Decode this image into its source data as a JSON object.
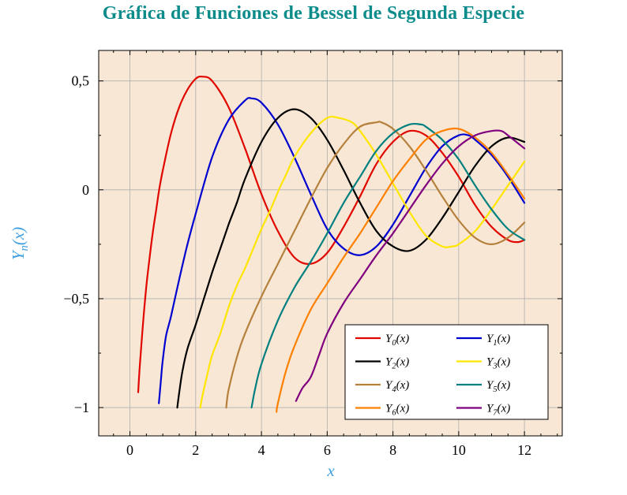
{
  "title": "Gráfica de Funciones de Bessel de Segunda Especie",
  "labels": {
    "x": "x",
    "y_base": "Y",
    "y_sub": "n",
    "y_rest": "(x)"
  },
  "colors": {
    "title": "#0c8b8b",
    "axis_label": "#3f9fdf",
    "plot_bg": "#f8e7d4",
    "grid": "#b0b0b0",
    "frame": "#000000",
    "legend_bg": "#ffffff",
    "legend_border": "#000000",
    "tick": "#000000"
  },
  "chart_data": {
    "type": "line",
    "title": "Gráfica de Funciones de Bessel de Segunda Especie",
    "xlabel": "x",
    "ylabel": "Yn(x)",
    "xlim": [
      -0.95,
      13.15
    ],
    "ylim": [
      -1.13,
      0.64
    ],
    "grid": true,
    "legend_position": "bottom-right",
    "xticks": [
      {
        "v": 0,
        "label": "0"
      },
      {
        "v": 2,
        "label": "2"
      },
      {
        "v": 4,
        "label": "4"
      },
      {
        "v": 6,
        "label": "6"
      },
      {
        "v": 8,
        "label": "8"
      },
      {
        "v": 10,
        "label": "10"
      },
      {
        "v": 12,
        "label": "12"
      }
    ],
    "yticks": [
      {
        "v": 0.5,
        "label": "0,5"
      },
      {
        "v": 0,
        "label": "0"
      },
      {
        "v": -0.5,
        "label": "−0,5"
      },
      {
        "v": -1,
        "label": "−1"
      }
    ],
    "series": [
      {
        "name": "Y0(x)",
        "n": 0,
        "color": "#e10600",
        "points": [
          [
            0.25,
            -0.93
          ],
          [
            0.3,
            -0.81
          ],
          [
            0.4,
            -0.61
          ],
          [
            0.5,
            -0.44
          ],
          [
            0.6,
            -0.31
          ],
          [
            0.7,
            -0.19
          ],
          [
            0.8,
            -0.09
          ],
          [
            0.9,
            0.01
          ],
          [
            1.0,
            0.09
          ],
          [
            1.25,
            0.26
          ],
          [
            1.5,
            0.38
          ],
          [
            1.75,
            0.46
          ],
          [
            2.0,
            0.51
          ],
          [
            2.2,
            0.52
          ],
          [
            2.5,
            0.5
          ],
          [
            3.0,
            0.38
          ],
          [
            3.5,
            0.19
          ],
          [
            4.0,
            -0.02
          ],
          [
            4.5,
            -0.19
          ],
          [
            5.0,
            -0.31
          ],
          [
            5.5,
            -0.34
          ],
          [
            6.0,
            -0.29
          ],
          [
            6.5,
            -0.17
          ],
          [
            7.0,
            -0.03
          ],
          [
            7.5,
            0.12
          ],
          [
            8.0,
            0.22
          ],
          [
            8.5,
            0.27
          ],
          [
            9.0,
            0.25
          ],
          [
            9.5,
            0.17
          ],
          [
            10.0,
            0.06
          ],
          [
            10.5,
            -0.07
          ],
          [
            11.0,
            -0.17
          ],
          [
            11.5,
            -0.23
          ],
          [
            11.8,
            -0.24
          ],
          [
            12.0,
            -0.23
          ]
        ]
      },
      {
        "name": "Y1(x)",
        "n": 1,
        "color": "#0000d0",
        "points": [
          [
            0.88,
            -0.98
          ],
          [
            0.95,
            -0.86
          ],
          [
            1.0,
            -0.78
          ],
          [
            1.1,
            -0.67
          ],
          [
            1.25,
            -0.58
          ],
          [
            1.5,
            -0.41
          ],
          [
            1.75,
            -0.25
          ],
          [
            2.0,
            -0.11
          ],
          [
            2.5,
            0.15
          ],
          [
            3.0,
            0.32
          ],
          [
            3.5,
            0.41
          ],
          [
            3.7,
            0.42
          ],
          [
            4.0,
            0.4
          ],
          [
            4.5,
            0.3
          ],
          [
            5.0,
            0.15
          ],
          [
            5.5,
            -0.02
          ],
          [
            6.0,
            -0.18
          ],
          [
            6.5,
            -0.27
          ],
          [
            7.0,
            -0.3
          ],
          [
            7.5,
            -0.26
          ],
          [
            8.0,
            -0.16
          ],
          [
            8.5,
            -0.03
          ],
          [
            9.0,
            0.1
          ],
          [
            9.5,
            0.2
          ],
          [
            10.0,
            0.25
          ],
          [
            10.3,
            0.25
          ],
          [
            10.5,
            0.23
          ],
          [
            11.0,
            0.16
          ],
          [
            11.5,
            0.06
          ],
          [
            12.0,
            -0.06
          ]
        ]
      },
      {
        "name": "Y2(x)",
        "n": 2,
        "color": "#000000",
        "points": [
          [
            1.44,
            -1.0
          ],
          [
            1.5,
            -0.93
          ],
          [
            1.6,
            -0.83
          ],
          [
            1.75,
            -0.73
          ],
          [
            2.0,
            -0.62
          ],
          [
            2.25,
            -0.5
          ],
          [
            2.5,
            -0.38
          ],
          [
            2.75,
            -0.27
          ],
          [
            3.0,
            -0.16
          ],
          [
            3.25,
            -0.06
          ],
          [
            3.5,
            0.05
          ],
          [
            4.0,
            0.22
          ],
          [
            4.5,
            0.33
          ],
          [
            5.0,
            0.37
          ],
          [
            5.5,
            0.33
          ],
          [
            6.0,
            0.23
          ],
          [
            6.5,
            0.09
          ],
          [
            7.0,
            -0.06
          ],
          [
            7.5,
            -0.19
          ],
          [
            8.0,
            -0.26
          ],
          [
            8.5,
            -0.28
          ],
          [
            9.0,
            -0.23
          ],
          [
            9.5,
            -0.13
          ],
          [
            10.0,
            -0.01
          ],
          [
            10.5,
            0.11
          ],
          [
            11.0,
            0.2
          ],
          [
            11.5,
            0.24
          ],
          [
            12.0,
            0.22
          ]
        ]
      },
      {
        "name": "Y3(x)",
        "n": 3,
        "color": "#ffe600",
        "points": [
          [
            2.14,
            -1.0
          ],
          [
            2.2,
            -0.95
          ],
          [
            2.35,
            -0.85
          ],
          [
            2.5,
            -0.76
          ],
          [
            2.75,
            -0.66
          ],
          [
            3.0,
            -0.54
          ],
          [
            3.25,
            -0.44
          ],
          [
            3.5,
            -0.36
          ],
          [
            3.75,
            -0.27
          ],
          [
            4.0,
            -0.18
          ],
          [
            4.25,
            -0.1
          ],
          [
            4.53,
            0.0
          ],
          [
            4.75,
            0.07
          ],
          [
            5.0,
            0.15
          ],
          [
            5.5,
            0.26
          ],
          [
            6.0,
            0.33
          ],
          [
            6.35,
            0.33
          ],
          [
            6.75,
            0.31
          ],
          [
            7.0,
            0.27
          ],
          [
            7.5,
            0.16
          ],
          [
            8.0,
            0.03
          ],
          [
            8.5,
            -0.1
          ],
          [
            9.0,
            -0.21
          ],
          [
            9.5,
            -0.26
          ],
          [
            9.8,
            -0.26
          ],
          [
            10.0,
            -0.25
          ],
          [
            10.5,
            -0.19
          ],
          [
            11.0,
            -0.09
          ],
          [
            11.5,
            0.02
          ],
          [
            12.0,
            0.13
          ]
        ]
      },
      {
        "name": "Y4(x)",
        "n": 4,
        "color": "#b5803c",
        "points": [
          [
            2.93,
            -1.0
          ],
          [
            3.0,
            -0.92
          ],
          [
            3.25,
            -0.77
          ],
          [
            3.5,
            -0.66
          ],
          [
            4.0,
            -0.49
          ],
          [
            4.5,
            -0.34
          ],
          [
            5.0,
            -0.19
          ],
          [
            5.5,
            -0.04
          ],
          [
            6.0,
            0.1
          ],
          [
            6.5,
            0.21
          ],
          [
            7.0,
            0.29
          ],
          [
            7.5,
            0.31
          ],
          [
            7.65,
            0.31
          ],
          [
            8.0,
            0.28
          ],
          [
            8.5,
            0.2
          ],
          [
            9.0,
            0.09
          ],
          [
            9.5,
            -0.03
          ],
          [
            10.0,
            -0.14
          ],
          [
            10.5,
            -0.22
          ],
          [
            11.0,
            -0.25
          ],
          [
            11.5,
            -0.22
          ],
          [
            12.0,
            -0.15
          ]
        ]
      },
      {
        "name": "Y5(x)",
        "n": 5,
        "color": "#008080",
        "points": [
          [
            3.7,
            -1.0
          ],
          [
            3.8,
            -0.92
          ],
          [
            4.0,
            -0.8
          ],
          [
            4.5,
            -0.6
          ],
          [
            5.0,
            -0.45
          ],
          [
            5.5,
            -0.33
          ],
          [
            6.0,
            -0.2
          ],
          [
            6.5,
            -0.06
          ],
          [
            7.0,
            0.06
          ],
          [
            7.5,
            0.18
          ],
          [
            8.0,
            0.26
          ],
          [
            8.5,
            0.3
          ],
          [
            8.85,
            0.3
          ],
          [
            9.0,
            0.29
          ],
          [
            9.5,
            0.23
          ],
          [
            10.0,
            0.14
          ],
          [
            10.5,
            0.02
          ],
          [
            11.0,
            -0.09
          ],
          [
            11.5,
            -0.18
          ],
          [
            12.0,
            -0.23
          ]
        ]
      },
      {
        "name": "Y6(x)",
        "n": 6,
        "color": "#fd8000",
        "points": [
          [
            4.46,
            -1.02
          ],
          [
            4.5,
            -0.98
          ],
          [
            4.75,
            -0.83
          ],
          [
            5.0,
            -0.72
          ],
          [
            5.5,
            -0.55
          ],
          [
            6.0,
            -0.43
          ],
          [
            6.5,
            -0.31
          ],
          [
            7.0,
            -0.2
          ],
          [
            7.5,
            -0.08
          ],
          [
            8.0,
            0.04
          ],
          [
            8.5,
            0.14
          ],
          [
            9.0,
            0.23
          ],
          [
            9.5,
            0.27
          ],
          [
            10.0,
            0.28
          ],
          [
            10.5,
            0.24
          ],
          [
            11.0,
            0.17
          ],
          [
            11.5,
            0.07
          ],
          [
            12.0,
            -0.04
          ]
        ]
      },
      {
        "name": "Y7(x)",
        "n": 7,
        "color": "#800080",
        "points": [
          [
            5.05,
            -0.97
          ],
          [
            5.25,
            -0.91
          ],
          [
            5.5,
            -0.86
          ],
          [
            5.75,
            -0.76
          ],
          [
            6.0,
            -0.66
          ],
          [
            6.5,
            -0.52
          ],
          [
            7.0,
            -0.41
          ],
          [
            7.5,
            -0.3
          ],
          [
            8.0,
            -0.2
          ],
          [
            8.5,
            -0.09
          ],
          [
            9.0,
            0.02
          ],
          [
            9.5,
            0.12
          ],
          [
            10.0,
            0.2
          ],
          [
            10.5,
            0.25
          ],
          [
            11.0,
            0.27
          ],
          [
            11.3,
            0.27
          ],
          [
            11.5,
            0.25
          ],
          [
            12.0,
            0.19
          ]
        ]
      }
    ]
  }
}
